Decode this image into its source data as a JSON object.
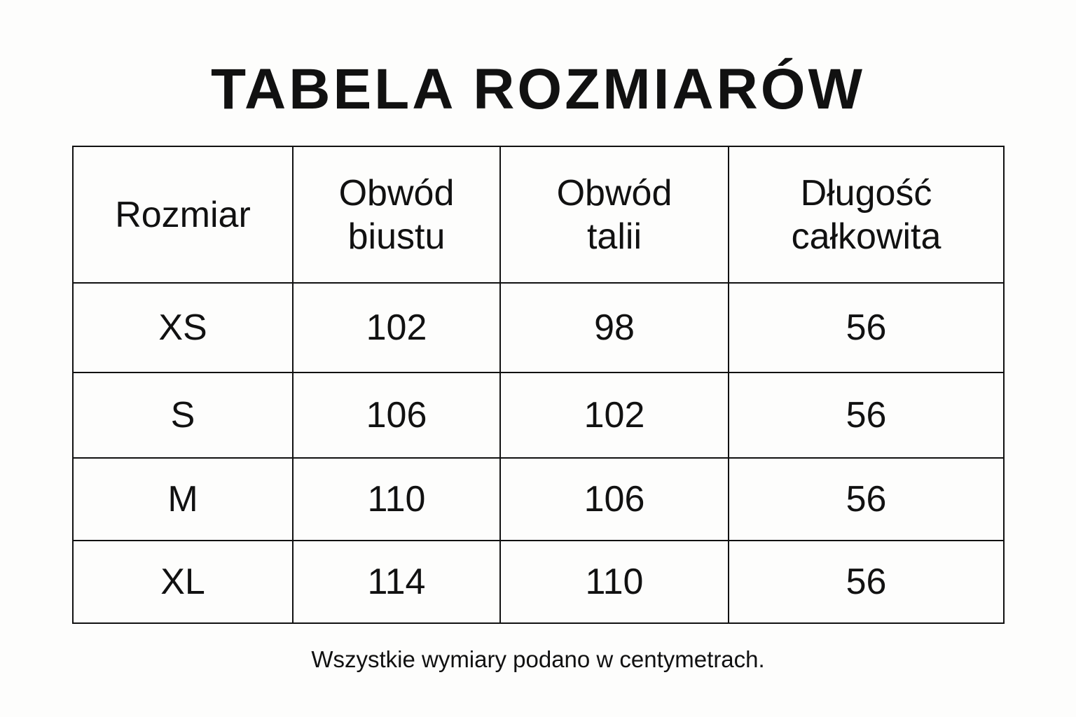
{
  "title": "TABELA ROZMIARÓW",
  "table": {
    "headers": [
      {
        "line1": "Rozmiar",
        "line2": ""
      },
      {
        "line1": "Obwód",
        "line2": "biustu"
      },
      {
        "line1": "Obwód",
        "line2": "talii"
      },
      {
        "line1": "Długość",
        "line2": "całkowita"
      }
    ],
    "rows": [
      [
        "XS",
        "102",
        "98",
        "56"
      ],
      [
        "S",
        "106",
        "102",
        "56"
      ],
      [
        "M",
        "110",
        "106",
        "56"
      ],
      [
        "XL",
        "114",
        "110",
        "56"
      ]
    ]
  },
  "note": "Wszystkie wymiary podano w centymetrach."
}
